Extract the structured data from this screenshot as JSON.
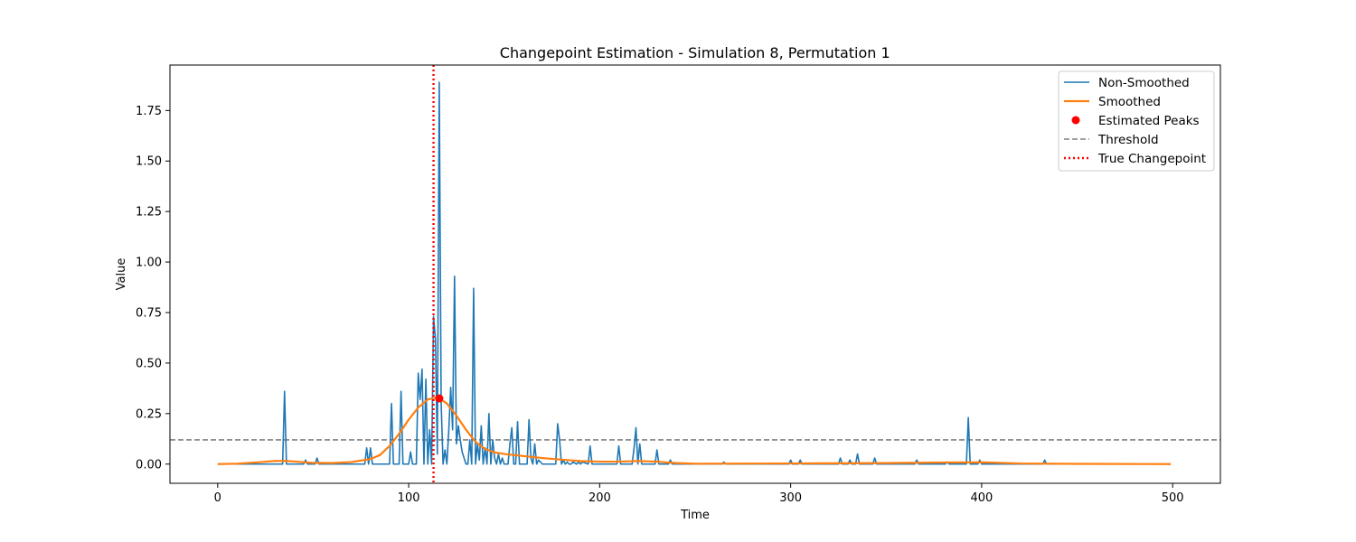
{
  "chart_data": {
    "type": "line",
    "title": "Changepoint Estimation - Simulation 8, Permutation 1",
    "xlabel": "Time",
    "ylabel": "Value",
    "xlim": [
      -25,
      525
    ],
    "ylim": [
      -0.095,
      1.975
    ],
    "xticks": [
      0,
      100,
      200,
      300,
      400,
      500
    ],
    "yticks": [
      0.0,
      0.25,
      0.5,
      0.75,
      1.0,
      1.25,
      1.5,
      1.75
    ],
    "ytick_labels": [
      "0.00",
      "0.25",
      "0.50",
      "0.75",
      "1.00",
      "1.25",
      "1.50",
      "1.75"
    ],
    "grid": false,
    "legend_position": "top-right",
    "series": [
      {
        "name": "Non-Smoothed",
        "color": "#1f77b4",
        "style": "solid",
        "x": [
          0,
          34,
          35,
          36,
          45,
          46,
          47,
          51,
          52,
          53,
          77,
          78,
          79,
          80,
          81,
          90,
          91,
          92,
          95,
          96,
          97,
          100,
          101,
          102,
          104,
          105,
          106,
          107,
          108,
          109,
          110,
          111,
          112,
          113,
          114,
          115,
          116,
          117,
          118,
          119,
          120,
          121,
          122,
          123,
          124,
          125,
          126,
          127,
          128,
          130,
          131,
          132,
          133,
          134,
          135,
          136,
          137,
          138,
          139,
          140,
          141,
          142,
          143,
          144,
          145,
          146,
          147,
          148,
          149,
          150,
          152,
          153,
          154,
          155,
          156,
          157,
          158,
          160,
          162,
          163,
          164,
          165,
          166,
          167,
          168,
          170,
          172,
          177,
          178,
          179,
          180,
          181,
          182,
          183,
          184,
          185,
          186,
          188,
          189,
          190,
          191,
          194,
          195,
          196,
          209,
          210,
          211,
          217,
          218,
          219,
          220,
          221,
          222,
          223,
          229,
          230,
          231,
          236,
          237,
          238,
          264,
          265,
          266,
          299,
          300,
          301,
          304,
          305,
          306,
          325,
          326,
          327,
          330,
          331,
          332,
          334,
          335,
          336,
          343,
          344,
          345,
          365,
          366,
          367,
          381,
          382,
          383,
          392,
          393,
          394,
          398,
          399,
          400,
          432,
          433,
          434,
          499
        ],
        "y": [
          0,
          0,
          0.36,
          0,
          0,
          0.02,
          0,
          0,
          0.03,
          0,
          0,
          0.08,
          0,
          0.08,
          0,
          0,
          0.3,
          0,
          0,
          0.36,
          0,
          0,
          0.06,
          0,
          0,
          0.45,
          0.32,
          0.47,
          0,
          0.42,
          0,
          0.17,
          0,
          0.73,
          0.62,
          0.05,
          1.89,
          0.3,
          0,
          0.07,
          0,
          0.17,
          0.38,
          0.17,
          0.93,
          0.1,
          0.19,
          0.12,
          0.06,
          0,
          0,
          0.12,
          0,
          0.87,
          0,
          0.1,
          0.02,
          0.19,
          0,
          0.08,
          0,
          0.25,
          0,
          0.12,
          0.03,
          0,
          0.05,
          0,
          0.03,
          0,
          0,
          0.1,
          0.18,
          0,
          0,
          0.21,
          0,
          0,
          0,
          0.22,
          0.03,
          0,
          0.1,
          0,
          0.02,
          0,
          0,
          0,
          0.2,
          0.12,
          0,
          0.02,
          0,
          0.01,
          0,
          0,
          0.01,
          0,
          0.01,
          0,
          0.01,
          0,
          0.09,
          0,
          0,
          0.09,
          0,
          0,
          0.08,
          0.18,
          0,
          0.1,
          0,
          0,
          0,
          0.07,
          0,
          0,
          0.02,
          0,
          0,
          0.01,
          0,
          0,
          0.02,
          0,
          0,
          0.02,
          0,
          0,
          0.03,
          0,
          0,
          0.02,
          0,
          0,
          0.05,
          0,
          0,
          0.03,
          0,
          0,
          0.02,
          0,
          0,
          0.01,
          0,
          0,
          0.23,
          0,
          0,
          0.02,
          0,
          0,
          0.02,
          0,
          0
        ]
      },
      {
        "name": "Smoothed",
        "color": "#ff7f0e",
        "style": "solid",
        "x": [
          0,
          10,
          20,
          30,
          35,
          40,
          50,
          60,
          70,
          80,
          85,
          90,
          95,
          100,
          105,
          110,
          114,
          116,
          120,
          125,
          130,
          135,
          140,
          145,
          150,
          155,
          160,
          170,
          180,
          190,
          200,
          210,
          220,
          230,
          240,
          250,
          300,
          350,
          380,
          400,
          420,
          450,
          499
        ],
        "y": [
          0,
          0.002,
          0.008,
          0.015,
          0.016,
          0.013,
          0.006,
          0.005,
          0.01,
          0.025,
          0.045,
          0.09,
          0.15,
          0.22,
          0.28,
          0.32,
          0.328,
          0.325,
          0.3,
          0.24,
          0.17,
          0.11,
          0.075,
          0.058,
          0.05,
          0.045,
          0.04,
          0.03,
          0.022,
          0.015,
          0.012,
          0.012,
          0.015,
          0.012,
          0.005,
          0.002,
          0.003,
          0.005,
          0.008,
          0.009,
          0.003,
          0.001,
          0
        ]
      }
    ],
    "estimated_peaks": {
      "name": "Estimated Peaks",
      "color": "#ff0000",
      "x": [
        116
      ],
      "y": [
        0.325
      ]
    },
    "threshold": {
      "name": "Threshold",
      "color": "#808080",
      "y": 0.12
    },
    "true_changepoint": {
      "name": "True Changepoint",
      "color": "#ff0000",
      "x": 113
    }
  }
}
